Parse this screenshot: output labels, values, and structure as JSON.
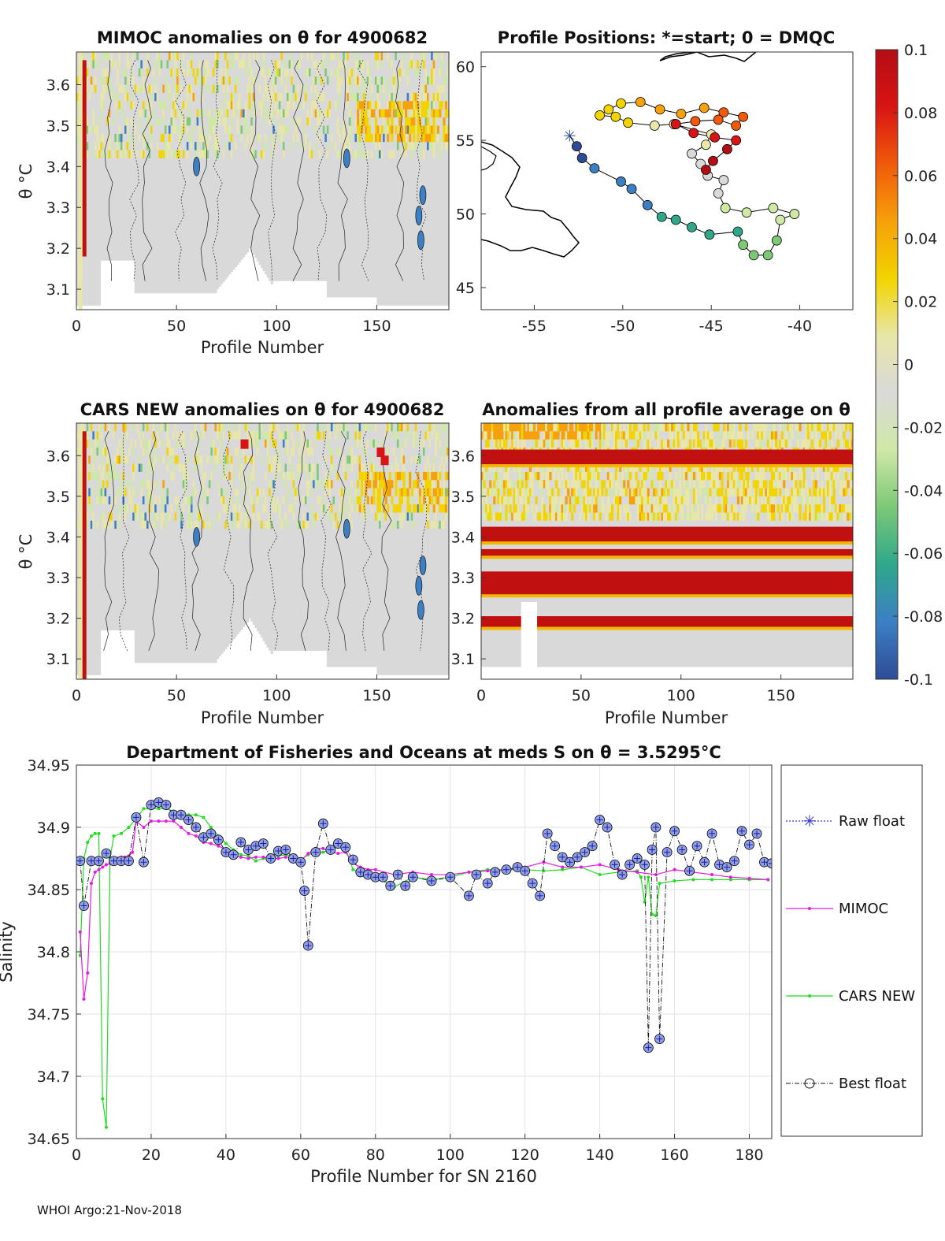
{
  "figure": {
    "footer": "WHOI Argo:21-Nov-2018",
    "colorbar": {
      "ticks": [
        "0.1",
        "0.08",
        "0.06",
        "0.04",
        "0.02",
        "0",
        "-0.02",
        "-0.04",
        "-0.06",
        "-0.08",
        "-0.1"
      ],
      "colors": [
        "#b30e14",
        "#d81414",
        "#f05a0a",
        "#f6a00a",
        "#f2d400",
        "#e8e6a8",
        "#d9d9d9",
        "#cfe8a6",
        "#7cc877",
        "#2fa88a",
        "#3c7fc4",
        "#2e4c96"
      ]
    }
  },
  "chart_data": [
    {
      "id": "mimoc",
      "type": "heatmap",
      "title": "MIMOC anomalies on θ  for 4900682",
      "xlabel": "Profile Number",
      "ylabel": "θ °C",
      "xlim": [
        0,
        186
      ],
      "ylim": [
        3.05,
        3.68
      ],
      "xticks": [
        0,
        50,
        100,
        150
      ],
      "yticks": [
        3.1,
        3.2,
        3.3,
        3.4,
        3.5,
        3.6
      ],
      "clim": [
        -0.1,
        0.1
      ]
    },
    {
      "id": "positions",
      "type": "scatter",
      "title": "Profile Positions: *=start; 0 = DMQC",
      "xlim": [
        -58,
        -37
      ],
      "ylim": [
        43.5,
        61
      ],
      "xticks": [
        -55,
        -50,
        -45,
        -40
      ],
      "yticks": [
        45,
        50,
        55,
        60
      ],
      "start": [
        -53,
        55.3
      ],
      "track": [
        [
          -53,
          55.3
        ],
        [
          -52.6,
          54.6
        ],
        [
          -52.3,
          53.8
        ],
        [
          -51.6,
          53.1
        ],
        [
          -50.1,
          52.2
        ],
        [
          -49.5,
          51.7
        ],
        [
          -48.6,
          50.6
        ],
        [
          -47.8,
          49.8
        ],
        [
          -47.0,
          49.6
        ],
        [
          -46.1,
          49.1
        ],
        [
          -45.1,
          48.6
        ],
        [
          -43.5,
          48.8
        ],
        [
          -43.2,
          47.9
        ],
        [
          -42.6,
          47.2
        ],
        [
          -41.8,
          47.2
        ],
        [
          -41.3,
          48.2
        ],
        [
          -41.1,
          49.6
        ],
        [
          -40.3,
          50.0
        ],
        [
          -41.5,
          50.4
        ],
        [
          -43.0,
          50.1
        ],
        [
          -44.2,
          50.4
        ],
        [
          -44.6,
          51.4
        ],
        [
          -44.3,
          52.3
        ],
        [
          -45.2,
          52.6
        ],
        [
          -45.6,
          53.4
        ],
        [
          -46.1,
          54.1
        ],
        [
          -45.3,
          54.7
        ],
        [
          -45.0,
          55.4
        ],
        [
          -47.1,
          56.1
        ],
        [
          -48.2,
          56.0
        ],
        [
          -49.7,
          56.2
        ],
        [
          -50.4,
          56.6
        ],
        [
          -51.3,
          56.7
        ],
        [
          -50.8,
          57.1
        ],
        [
          -50.1,
          57.5
        ],
        [
          -49.0,
          57.6
        ],
        [
          -47.9,
          57.1
        ],
        [
          -46.7,
          56.8
        ],
        [
          -45.4,
          57.2
        ],
        [
          -44.3,
          56.9
        ],
        [
          -43.2,
          56.6
        ],
        [
          -43.6,
          56.0
        ],
        [
          -44.6,
          56.4
        ],
        [
          -45.9,
          56.3
        ],
        [
          -47.0,
          56.1
        ],
        [
          -46.0,
          55.5
        ],
        [
          -44.8,
          55.2
        ],
        [
          -43.6,
          55.0
        ],
        [
          -44.1,
          54.4
        ],
        [
          -44.9,
          53.6
        ],
        [
          -45.3,
          53.0
        ]
      ]
    },
    {
      "id": "cars",
      "type": "heatmap",
      "title": "CARS NEW anomalies on θ for 4900682",
      "xlabel": "Profile Number",
      "ylabel": "θ °C",
      "xlim": [
        0,
        186
      ],
      "ylim": [
        3.05,
        3.68
      ],
      "xticks": [
        0,
        50,
        100,
        150
      ],
      "yticks": [
        3.1,
        3.2,
        3.3,
        3.4,
        3.5,
        3.6
      ],
      "clim": [
        -0.1,
        0.1
      ]
    },
    {
      "id": "allavg",
      "type": "heatmap",
      "title": "Anomalies from all profile average on θ",
      "xlabel": "Profile Number",
      "xlim": [
        0,
        186
      ],
      "ylim": [
        3.05,
        3.68
      ],
      "xticks": [
        0,
        50,
        100,
        150
      ],
      "yticks": [
        3.1,
        3.2,
        3.3,
        3.4,
        3.5,
        3.6
      ],
      "clim": [
        -0.1,
        0.1
      ],
      "red_bands": [
        [
          3.575,
          3.615
        ],
        [
          3.385,
          3.425
        ],
        [
          3.35,
          3.37
        ],
        [
          3.255,
          3.315
        ],
        [
          3.175,
          3.205
        ]
      ]
    },
    {
      "id": "salinity",
      "type": "line",
      "title": "Department of Fisheries and Oceans at meds S on θ = 3.5295°C",
      "xlabel": "Profile Number for SN 2160",
      "ylabel": "Salinity",
      "xlim": [
        0,
        186
      ],
      "ylim": [
        34.65,
        34.95
      ],
      "xticks": [
        0,
        20,
        40,
        60,
        80,
        100,
        120,
        140,
        160,
        180
      ],
      "yticks": [
        34.65,
        34.7,
        34.75,
        34.8,
        34.85,
        34.9,
        34.95
      ],
      "legend": [
        "Raw float",
        "MIMOC",
        "CARS NEW",
        "Best float"
      ],
      "series": [
        {
          "name": "Best float",
          "x": [
            1,
            2,
            4,
            6,
            8,
            10,
            12,
            14,
            16,
            18,
            20,
            22,
            24,
            26,
            28,
            30,
            32,
            34,
            36,
            38,
            40,
            42,
            44,
            46,
            48,
            50,
            52,
            54,
            56,
            58,
            60,
            61,
            62,
            64,
            66,
            68,
            70,
            72,
            74,
            76,
            78,
            80,
            82,
            84,
            86,
            88,
            90,
            95,
            100,
            105,
            107,
            110,
            112,
            115,
            118,
            120,
            122,
            124,
            126,
            128,
            130,
            132,
            134,
            136,
            138,
            140,
            142,
            144,
            146,
            148,
            150,
            152,
            153,
            154,
            155,
            156,
            158,
            160,
            162,
            164,
            166,
            168,
            170,
            172,
            174,
            176,
            178,
            180,
            182,
            184,
            186
          ],
          "y": [
            34.873,
            34.837,
            34.873,
            34.873,
            34.879,
            34.873,
            34.873,
            34.873,
            34.908,
            34.872,
            34.918,
            34.92,
            34.918,
            34.91,
            34.91,
            34.906,
            34.9,
            34.892,
            34.895,
            34.89,
            34.88,
            34.878,
            34.888,
            34.882,
            34.885,
            34.887,
            34.875,
            34.881,
            34.882,
            34.875,
            34.872,
            34.849,
            34.805,
            34.88,
            34.903,
            34.882,
            34.887,
            34.884,
            34.874,
            34.864,
            34.862,
            34.86,
            34.86,
            34.853,
            34.862,
            34.853,
            34.86,
            34.857,
            34.86,
            34.845,
            34.862,
            34.855,
            34.864,
            34.866,
            34.868,
            34.865,
            34.855,
            34.845,
            34.895,
            34.885,
            34.876,
            34.872,
            34.876,
            34.88,
            34.885,
            34.906,
            34.9,
            34.87,
            34.862,
            34.87,
            34.875,
            34.87,
            34.723,
            34.882,
            34.9,
            34.73,
            34.88,
            34.897,
            34.882,
            34.865,
            34.885,
            34.872,
            34.895,
            34.87,
            34.868,
            34.873,
            34.897,
            34.886,
            34.895,
            34.872,
            34.871
          ]
        },
        {
          "name": "MIMOC",
          "x": [
            1,
            2,
            3,
            4,
            5,
            6,
            7,
            8,
            9,
            10,
            11,
            12,
            13,
            14,
            15,
            16,
            18,
            20,
            22,
            24,
            26,
            28,
            30,
            32,
            34,
            36,
            38,
            40,
            42,
            44,
            46,
            48,
            50,
            52,
            54,
            56,
            58,
            60,
            62,
            64,
            66,
            68,
            70,
            72,
            74,
            76,
            78,
            80,
            85,
            90,
            95,
            100,
            105,
            110,
            115,
            120,
            125,
            130,
            135,
            140,
            145,
            150,
            155,
            160,
            165,
            170,
            175,
            180,
            185
          ],
          "y": [
            34.816,
            34.762,
            34.783,
            34.855,
            34.864,
            34.866,
            34.868,
            34.87,
            34.871,
            34.873,
            34.875,
            34.876,
            34.876,
            34.877,
            34.88,
            34.905,
            34.9,
            34.905,
            34.905,
            34.905,
            34.905,
            34.9,
            34.895,
            34.893,
            34.888,
            34.887,
            34.885,
            34.882,
            34.877,
            34.876,
            34.875,
            34.876,
            34.876,
            34.875,
            34.875,
            34.876,
            34.876,
            34.873,
            34.879,
            34.883,
            34.883,
            34.88,
            34.879,
            34.88,
            34.871,
            34.868,
            34.866,
            34.866,
            34.862,
            34.864,
            34.862,
            34.862,
            34.864,
            34.865,
            34.866,
            34.868,
            34.872,
            34.868,
            34.868,
            34.87,
            34.866,
            34.864,
            34.862,
            34.866,
            34.864,
            34.862,
            34.86,
            34.859,
            34.858
          ]
        },
        {
          "name": "CARS NEW",
          "x": [
            1,
            2,
            3,
            4,
            5,
            6,
            7,
            8,
            9,
            10,
            12,
            14,
            16,
            18,
            20,
            22,
            24,
            26,
            28,
            30,
            32,
            34,
            36,
            38,
            40,
            42,
            44,
            46,
            48,
            50,
            52,
            54,
            56,
            58,
            60,
            62,
            64,
            66,
            68,
            70,
            72,
            74,
            76,
            78,
            80,
            85,
            90,
            95,
            100,
            105,
            110,
            115,
            120,
            125,
            130,
            135,
            140,
            145,
            150,
            151,
            152,
            153,
            154,
            155,
            156,
            160,
            165,
            170,
            175,
            180,
            185
          ],
          "y": [
            34.797,
            34.875,
            34.888,
            34.893,
            34.895,
            34.895,
            34.682,
            34.659,
            34.875,
            34.893,
            34.895,
            34.9,
            34.907,
            34.915,
            34.915,
            34.915,
            34.915,
            34.913,
            34.91,
            34.91,
            34.91,
            34.908,
            34.9,
            34.893,
            34.887,
            34.882,
            34.878,
            34.877,
            34.873,
            34.875,
            34.876,
            34.877,
            34.878,
            34.877,
            34.874,
            34.878,
            34.88,
            34.88,
            34.883,
            34.884,
            34.883,
            34.866,
            34.863,
            34.863,
            34.86,
            34.852,
            34.86,
            34.858,
            34.86,
            34.864,
            34.866,
            34.866,
            34.866,
            34.865,
            34.866,
            34.868,
            34.862,
            34.864,
            34.865,
            34.86,
            34.84,
            34.86,
            34.83,
            34.829,
            34.855,
            34.857,
            34.858,
            34.858,
            34.858,
            34.858,
            34.858
          ]
        }
      ]
    }
  ]
}
